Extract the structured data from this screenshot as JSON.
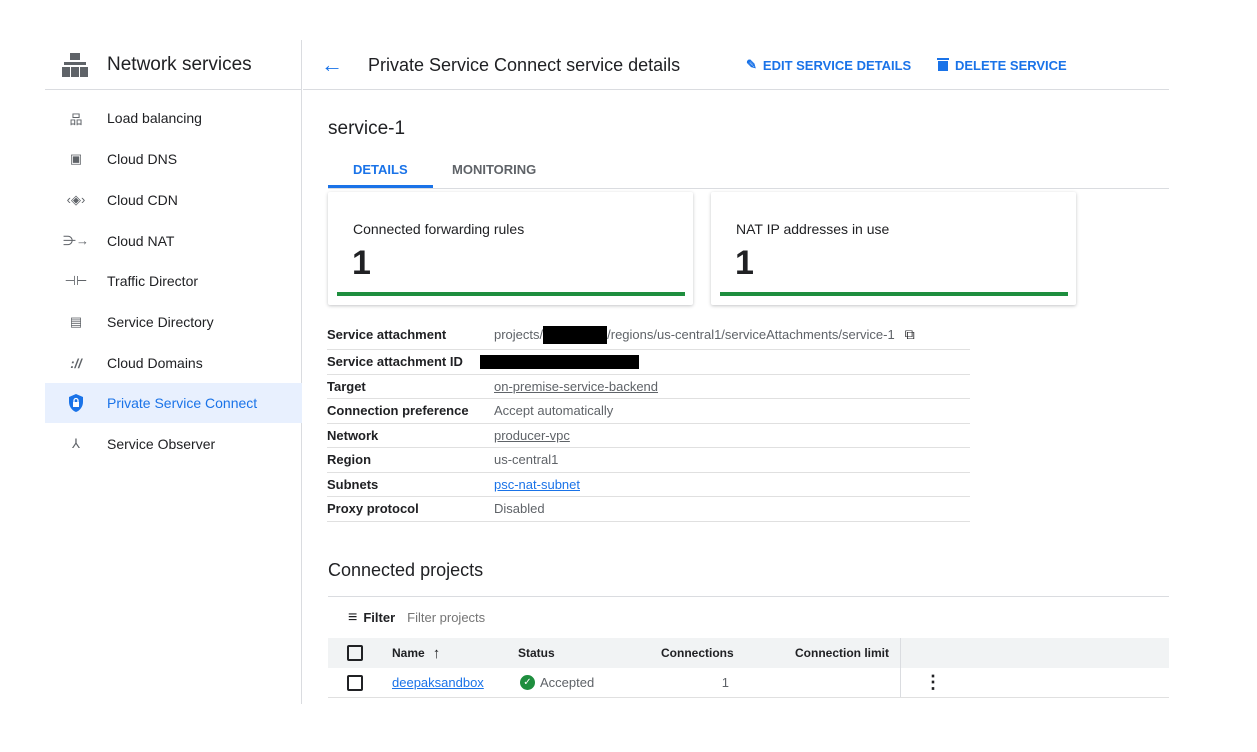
{
  "sidebar": {
    "title": "Network services",
    "items": [
      {
        "label": "Load balancing",
        "icon": "load-balancing-icon"
      },
      {
        "label": "Cloud DNS",
        "icon": "cloud-dns-icon"
      },
      {
        "label": "Cloud CDN",
        "icon": "cloud-cdn-icon"
      },
      {
        "label": "Cloud NAT",
        "icon": "cloud-nat-icon"
      },
      {
        "label": "Traffic Director",
        "icon": "traffic-director-icon"
      },
      {
        "label": "Service Directory",
        "icon": "service-directory-icon"
      },
      {
        "label": "Cloud Domains",
        "icon": "cloud-domains-icon"
      },
      {
        "label": "Private Service Connect",
        "icon": "shield-lock-icon",
        "active": true
      },
      {
        "label": "Service Observer",
        "icon": "service-observer-icon"
      }
    ]
  },
  "header": {
    "title": "Private Service Connect service details",
    "edit_label": "EDIT SERVICE DETAILS",
    "delete_label": "DELETE SERVICE"
  },
  "service_name": "service-1",
  "tabs": [
    {
      "label": "DETAILS",
      "active": true
    },
    {
      "label": "MONITORING"
    }
  ],
  "cards": [
    {
      "label": "Connected forwarding rules",
      "value": "1"
    },
    {
      "label": "NAT IP addresses in use",
      "value": "1"
    }
  ],
  "details": {
    "service_attachment": {
      "label": "Service attachment",
      "prefix": "projects/",
      "suffix": "/regions/us-central1/serviceAttachments/service-1"
    },
    "service_attachment_id": {
      "label": "Service attachment ID"
    },
    "target": {
      "label": "Target",
      "value": "on-premise-service-backend"
    },
    "connection_preference": {
      "label": "Connection preference",
      "value": "Accept automatically"
    },
    "network": {
      "label": "Network",
      "value": "producer-vpc"
    },
    "region": {
      "label": "Region",
      "value": "us-central1"
    },
    "subnets": {
      "label": "Subnets",
      "value": "psc-nat-subnet"
    },
    "proxy_protocol": {
      "label": "Proxy protocol",
      "value": "Disabled"
    }
  },
  "connected_projects": {
    "title": "Connected projects",
    "filter_label": "Filter",
    "filter_placeholder": "Filter projects",
    "columns": [
      "Name",
      "Status",
      "Connections",
      "Connection limit"
    ],
    "rows": [
      {
        "name": "deepaksandbox",
        "status": "Accepted",
        "connections": "1",
        "limit": ""
      }
    ]
  },
  "colors": {
    "accent": "#1a73e8",
    "success": "#1e8e3e",
    "visited_link": "#9334e6"
  }
}
